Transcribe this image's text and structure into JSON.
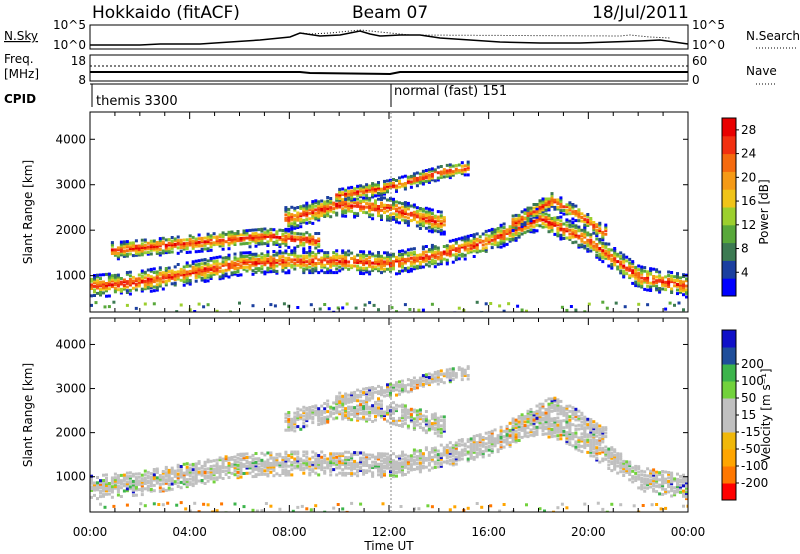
{
  "header": {
    "station": "Hokkaido (fitACF)",
    "beam": "Beam 07",
    "date": "18/Jul/2011"
  },
  "panels": {
    "nsky": {
      "label": "N.Sky",
      "tick_top": "10^5",
      "tick_bottom": "10^0",
      "right_top": "10^5",
      "right_bottom": "10^0",
      "right_label": "N.Search"
    },
    "freq": {
      "label": "Freq.",
      "unit": "[MHz]",
      "tick_top": "18",
      "tick_bottom": "8",
      "right_top": "60",
      "right_bottom": "0",
      "right_label": "Nave"
    },
    "cpid": {
      "label": "CPID",
      "segments": [
        {
          "text": "themis 3300",
          "start_hour": 0
        },
        {
          "text": "normal (fast) 151",
          "start_hour": 12
        }
      ]
    }
  },
  "colors": {
    "power": [
      "#0000ff",
      "#1b3fa0",
      "#3c7a52",
      "#58a83a",
      "#9ccf2e",
      "#f0c419",
      "#f59a16",
      "#f56a0e",
      "#f23010",
      "#e80000"
    ],
    "velocity": [
      "#ff0000",
      "#ff7700",
      "#ffa500",
      "#f0b80a",
      "#c0c0c0",
      "#c0c0c0",
      "#72d23c",
      "#3cb44b",
      "#1f4e9a",
      "#1010c8"
    ]
  },
  "chart_data": [
    {
      "type": "heatmap",
      "name": "power",
      "ylabel": "Slant Range [km]",
      "xlim": [
        0,
        24
      ],
      "ylim": [
        200,
        4600
      ],
      "y_ticks": [
        1000,
        2000,
        3000,
        4000
      ],
      "colorbar": {
        "label": "Power [dB]",
        "ticks": [
          4,
          8,
          12,
          16,
          20,
          24,
          28
        ],
        "range": [
          0,
          30
        ]
      },
      "echo_bands": [
        {
          "x": [
            0,
            2,
            4,
            6,
            8,
            10,
            12,
            14,
            16,
            18,
            20,
            22,
            24
          ],
          "y": [
            800,
            900,
            1100,
            1300,
            1350,
            1350,
            1300,
            1500,
            1800,
            2300,
            1800,
            1000,
            800
          ],
          "width": 500
        },
        {
          "x": [
            1,
            3,
            5,
            7,
            9
          ],
          "y": [
            1600,
            1700,
            1800,
            1900,
            1800
          ],
          "width": 400
        },
        {
          "x": [
            8,
            10,
            12,
            14
          ],
          "y": [
            2300,
            2600,
            2500,
            2200
          ],
          "width": 500
        },
        {
          "x": [
            10,
            12,
            14,
            15
          ],
          "y": [
            2800,
            3000,
            3300,
            3400
          ],
          "width": 300
        },
        {
          "x": [
            17,
            18.5,
            19.5,
            20.5
          ],
          "y": [
            2200,
            2700,
            2400,
            2000
          ],
          "width": 350
        }
      ]
    },
    {
      "type": "heatmap",
      "name": "velocity",
      "xlabel": "Time UT",
      "ylabel": "Slant Range [km]",
      "xlim": [
        0,
        24
      ],
      "ylim": [
        200,
        4600
      ],
      "x_ticks": [
        "00:00",
        "04:00",
        "08:00",
        "12:00",
        "16:00",
        "20:00",
        "00:00"
      ],
      "y_ticks": [
        1000,
        2000,
        3000,
        4000
      ],
      "colorbar": {
        "label": "Velocity [m s⁻¹]",
        "ticks": [
          -200,
          -100,
          -50,
          -15,
          15,
          50,
          100,
          200
        ]
      },
      "echo_bands": [
        {
          "x": [
            0,
            2,
            4,
            6,
            8,
            10,
            12,
            14,
            16,
            18,
            20,
            22,
            24
          ],
          "y": [
            800,
            900,
            1100,
            1300,
            1350,
            1350,
            1300,
            1500,
            1800,
            2300,
            1800,
            1000,
            800
          ],
          "width": 550
        },
        {
          "x": [
            8,
            10,
            12,
            14
          ],
          "y": [
            2300,
            2600,
            2500,
            2200
          ],
          "width": 500
        },
        {
          "x": [
            10,
            12,
            14,
            15
          ],
          "y": [
            2800,
            3000,
            3300,
            3400
          ],
          "width": 300
        },
        {
          "x": [
            17,
            18.5,
            19.5,
            20.5
          ],
          "y": [
            2200,
            2700,
            2400,
            2000
          ],
          "width": 350
        }
      ]
    }
  ]
}
